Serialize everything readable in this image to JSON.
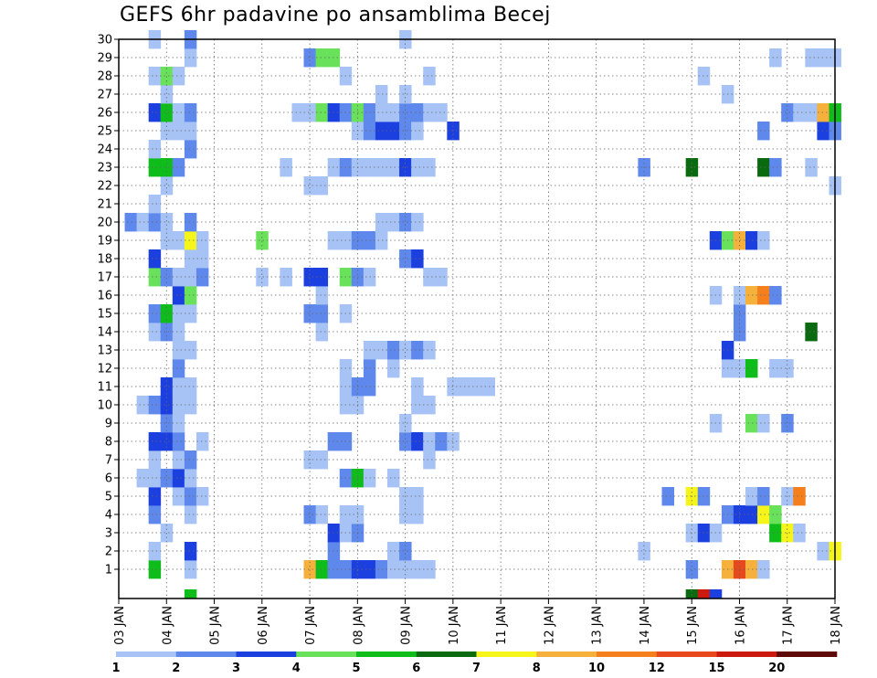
{
  "chart_data": {
    "type": "heatmap",
    "title": "GEFS 6hr padavine po ansamblima Becej",
    "x_tick_labels": [
      "03 JAN",
      "04 JAN",
      "05 JAN",
      "06 JAN",
      "07 JAN",
      "08 JAN",
      "09 JAN",
      "10 JAN",
      "11 JAN",
      "12 JAN",
      "13 JAN",
      "14 JAN",
      "15 JAN",
      "16 JAN",
      "17 JAN",
      "18 JAN"
    ],
    "y_tick_labels": [
      "1",
      "2",
      "3",
      "4",
      "5",
      "6",
      "7",
      "8",
      "9",
      "10",
      "11",
      "12",
      "13",
      "14",
      "15",
      "16",
      "17",
      "18",
      "19",
      "20",
      "21",
      "22",
      "23",
      "24",
      "25",
      "26",
      "27",
      "28",
      "29",
      "30"
    ],
    "xlim_day_of_january": [
      3,
      18
    ],
    "ylim_member": [
      0,
      30
    ],
    "step_hours": 6,
    "grid": true,
    "legend": {
      "placement": "bottom",
      "labels": [
        "1",
        "2",
        "3",
        "4",
        "5",
        "6",
        "7",
        "8",
        "10",
        "12",
        "15",
        "20"
      ],
      "colors": [
        "#a7c3f5",
        "#5f88ec",
        "#1c3fe0",
        "#6ae15a",
        "#0fbd1a",
        "#0a6a10",
        "#f5f51c",
        "#f5b13c",
        "#f57f1c",
        "#e8491c",
        "#cd1a10",
        "#5f0808"
      ]
    },
    "cells": [
      [
        1,
        "03 JAN 18",
        5
      ],
      [
        1,
        "04 JAN 12",
        1
      ],
      [
        1,
        "07 JAN 00",
        9
      ],
      [
        1,
        "07 JAN 06",
        5
      ],
      [
        1,
        "07 JAN 12",
        2
      ],
      [
        1,
        "07 JAN 18",
        2
      ],
      [
        1,
        "08 JAN 00",
        3
      ],
      [
        1,
        "08 JAN 06",
        3
      ],
      [
        1,
        "08 JAN 12",
        2
      ],
      [
        1,
        "08 JAN 18",
        1
      ],
      [
        1,
        "09 JAN 00",
        1
      ],
      [
        1,
        "09 JAN 06",
        1
      ],
      [
        1,
        "09 JAN 12",
        1
      ],
      [
        1,
        "15 JAN 00",
        2
      ],
      [
        1,
        "15 JAN 18",
        9
      ],
      [
        1,
        "16 JAN 00",
        12
      ],
      [
        1,
        "16 JAN 06",
        8
      ],
      [
        1,
        "16 JAN 12",
        1
      ],
      [
        2,
        "03 JAN 18",
        1
      ],
      [
        2,
        "04 JAN 12",
        3
      ],
      [
        2,
        "07 JAN 12",
        2
      ],
      [
        2,
        "08 JAN 18",
        1
      ],
      [
        2,
        "09 JAN 00",
        2
      ],
      [
        2,
        "14 JAN 00",
        1
      ],
      [
        2,
        "17 JAN 18",
        1
      ],
      [
        2,
        "18 JAN 00",
        7
      ],
      [
        3,
        "04 JAN 00",
        1
      ],
      [
        3,
        "07 JAN 12",
        3
      ],
      [
        3,
        "07 JAN 18",
        1
      ],
      [
        3,
        "08 JAN 00",
        2
      ],
      [
        3,
        "15 JAN 00",
        1
      ],
      [
        3,
        "15 JAN 06",
        3
      ],
      [
        3,
        "15 JAN 12",
        1
      ],
      [
        3,
        "16 JAN 18",
        5
      ],
      [
        3,
        "17 JAN 00",
        7
      ],
      [
        3,
        "17 JAN 06",
        1
      ],
      [
        4,
        "03 JAN 18",
        2
      ],
      [
        4,
        "04 JAN 12",
        1
      ],
      [
        4,
        "07 JAN 00",
        2
      ],
      [
        4,
        "07 JAN 06",
        1
      ],
      [
        4,
        "07 JAN 18",
        1
      ],
      [
        4,
        "08 JAN 00",
        1
      ],
      [
        4,
        "09 JAN 00",
        1
      ],
      [
        4,
        "09 JAN 06",
        1
      ],
      [
        4,
        "15 JAN 18",
        2
      ],
      [
        4,
        "16 JAN 00",
        3
      ],
      [
        4,
        "16 JAN 06",
        3
      ],
      [
        4,
        "16 JAN 12",
        7
      ],
      [
        4,
        "16 JAN 18",
        4
      ],
      [
        5,
        "03 JAN 18",
        3
      ],
      [
        5,
        "04 JAN 06",
        1
      ],
      [
        5,
        "04 JAN 12",
        2
      ],
      [
        5,
        "04 JAN 18",
        1
      ],
      [
        5,
        "09 JAN 00",
        1
      ],
      [
        5,
        "09 JAN 06",
        1
      ],
      [
        5,
        "14 JAN 12",
        2
      ],
      [
        5,
        "15 JAN 00",
        7
      ],
      [
        5,
        "15 JAN 06",
        2
      ],
      [
        5,
        "16 JAN 06",
        1
      ],
      [
        5,
        "16 JAN 12",
        2
      ],
      [
        5,
        "17 JAN 00",
        1
      ],
      [
        5,
        "17 JAN 06",
        10
      ],
      [
        6,
        "03 JAN 12",
        1
      ],
      [
        6,
        "03 JAN 18",
        1
      ],
      [
        6,
        "04 JAN 00",
        2
      ],
      [
        6,
        "04 JAN 06",
        3
      ],
      [
        6,
        "04 JAN 12",
        1
      ],
      [
        6,
        "07 JAN 18",
        2
      ],
      [
        6,
        "08 JAN 00",
        5
      ],
      [
        6,
        "08 JAN 06",
        1
      ],
      [
        6,
        "08 JAN 18",
        1
      ],
      [
        7,
        "03 JAN 18",
        1
      ],
      [
        7,
        "04 JAN 06",
        1
      ],
      [
        7,
        "04 JAN 12",
        2
      ],
      [
        7,
        "07 JAN 00",
        1
      ],
      [
        7,
        "07 JAN 06",
        1
      ],
      [
        7,
        "09 JAN 12",
        1
      ],
      [
        8,
        "03 JAN 18",
        3
      ],
      [
        8,
        "04 JAN 00",
        3
      ],
      [
        8,
        "04 JAN 06",
        2
      ],
      [
        8,
        "04 JAN 18",
        1
      ],
      [
        8,
        "07 JAN 12",
        2
      ],
      [
        8,
        "07 JAN 18",
        2
      ],
      [
        8,
        "09 JAN 00",
        2
      ],
      [
        8,
        "09 JAN 06",
        3
      ],
      [
        8,
        "09 JAN 12",
        1
      ],
      [
        8,
        "09 JAN 18",
        2
      ],
      [
        8,
        "10 JAN 00",
        1
      ],
      [
        9,
        "04 JAN 00",
        2
      ],
      [
        9,
        "04 JAN 06",
        1
      ],
      [
        9,
        "09 JAN 00",
        1
      ],
      [
        9,
        "15 JAN 12",
        1
      ],
      [
        9,
        "16 JAN 06",
        4
      ],
      [
        9,
        "16 JAN 12",
        1
      ],
      [
        9,
        "17 JAN 00",
        2
      ],
      [
        10,
        "03 JAN 12",
        1
      ],
      [
        10,
        "03 JAN 18",
        2
      ],
      [
        10,
        "04 JAN 00",
        3
      ],
      [
        10,
        "04 JAN 06",
        1
      ],
      [
        10,
        "04 JAN 12",
        1
      ],
      [
        10,
        "07 JAN 18",
        1
      ],
      [
        10,
        "08 JAN 00",
        1
      ],
      [
        10,
        "09 JAN 06",
        1
      ],
      [
        10,
        "09 JAN 12",
        1
      ],
      [
        11,
        "04 JAN 00",
        3
      ],
      [
        11,
        "04 JAN 06",
        1
      ],
      [
        11,
        "04 JAN 12",
        1
      ],
      [
        11,
        "07 JAN 18",
        1
      ],
      [
        11,
        "08 JAN 00",
        2
      ],
      [
        11,
        "08 JAN 06",
        2
      ],
      [
        11,
        "09 JAN 06",
        1
      ],
      [
        11,
        "10 JAN 00",
        1
      ],
      [
        11,
        "10 JAN 06",
        1
      ],
      [
        11,
        "10 JAN 12",
        1
      ],
      [
        11,
        "10 JAN 18",
        1
      ],
      [
        12,
        "04 JAN 06",
        2
      ],
      [
        12,
        "07 JAN 18",
        1
      ],
      [
        12,
        "08 JAN 06",
        2
      ],
      [
        12,
        "08 JAN 18",
        1
      ],
      [
        12,
        "15 JAN 18",
        1
      ],
      [
        12,
        "16 JAN 00",
        1
      ],
      [
        12,
        "16 JAN 06",
        5
      ],
      [
        12,
        "16 JAN 18",
        1
      ],
      [
        12,
        "17 JAN 00",
        1
      ],
      [
        13,
        "04 JAN 06",
        1
      ],
      [
        13,
        "04 JAN 12",
        1
      ],
      [
        13,
        "08 JAN 06",
        1
      ],
      [
        13,
        "08 JAN 12",
        1
      ],
      [
        13,
        "08 JAN 18",
        2
      ],
      [
        13,
        "09 JAN 00",
        1
      ],
      [
        13,
        "09 JAN 06",
        2
      ],
      [
        13,
        "09 JAN 12",
        1
      ],
      [
        13,
        "15 JAN 18",
        3
      ],
      [
        14,
        "03 JAN 18",
        1
      ],
      [
        14,
        "04 JAN 00",
        2
      ],
      [
        14,
        "04 JAN 06",
        1
      ],
      [
        14,
        "07 JAN 06",
        1
      ],
      [
        14,
        "16 JAN 00",
        2
      ],
      [
        14,
        "17 JAN 12",
        6
      ],
      [
        15,
        "03 JAN 18",
        2
      ],
      [
        15,
        "04 JAN 00",
        5
      ],
      [
        15,
        "04 JAN 06",
        1
      ],
      [
        15,
        "04 JAN 12",
        1
      ],
      [
        15,
        "07 JAN 00",
        2
      ],
      [
        15,
        "07 JAN 06",
        2
      ],
      [
        15,
        "07 JAN 18",
        1
      ],
      [
        15,
        "16 JAN 00",
        2
      ],
      [
        16,
        "04 JAN 06",
        3
      ],
      [
        16,
        "04 JAN 12",
        4
      ],
      [
        16,
        "07 JAN 06",
        1
      ],
      [
        16,
        "15 JAN 12",
        1
      ],
      [
        16,
        "16 JAN 00",
        1
      ],
      [
        16,
        "16 JAN 06",
        9
      ],
      [
        16,
        "16 JAN 12",
        10
      ],
      [
        16,
        "16 JAN 18",
        2
      ],
      [
        17,
        "03 JAN 18",
        4
      ],
      [
        17,
        "04 JAN 00",
        2
      ],
      [
        17,
        "04 JAN 06",
        1
      ],
      [
        17,
        "04 JAN 12",
        1
      ],
      [
        17,
        "04 JAN 18",
        2
      ],
      [
        17,
        "06 JAN 00",
        1
      ],
      [
        17,
        "06 JAN 12",
        1
      ],
      [
        17,
        "07 JAN 00",
        3
      ],
      [
        17,
        "07 JAN 06",
        3
      ],
      [
        17,
        "07 JAN 18",
        4
      ],
      [
        17,
        "08 JAN 00",
        2
      ],
      [
        17,
        "08 JAN 06",
        1
      ],
      [
        17,
        "09 JAN 12",
        1
      ],
      [
        17,
        "09 JAN 18",
        1
      ],
      [
        18,
        "03 JAN 18",
        3
      ],
      [
        18,
        "04 JAN 12",
        1
      ],
      [
        18,
        "04 JAN 18",
        1
      ],
      [
        18,
        "09 JAN 00",
        2
      ],
      [
        18,
        "09 JAN 06",
        3
      ],
      [
        19,
        "04 JAN 00",
        1
      ],
      [
        19,
        "04 JAN 06",
        1
      ],
      [
        19,
        "04 JAN 12",
        7
      ],
      [
        19,
        "04 JAN 18",
        1
      ],
      [
        19,
        "06 JAN 00",
        4
      ],
      [
        19,
        "07 JAN 12",
        1
      ],
      [
        19,
        "07 JAN 18",
        1
      ],
      [
        19,
        "08 JAN 00",
        2
      ],
      [
        19,
        "08 JAN 06",
        2
      ],
      [
        19,
        "08 JAN 12",
        1
      ],
      [
        19,
        "15 JAN 12",
        3
      ],
      [
        19,
        "15 JAN 18",
        4
      ],
      [
        19,
        "16 JAN 00",
        9
      ],
      [
        19,
        "16 JAN 06",
        3
      ],
      [
        19,
        "16 JAN 12",
        1
      ],
      [
        20,
        "03 JAN 06",
        2
      ],
      [
        20,
        "03 JAN 12",
        1
      ],
      [
        20,
        "03 JAN 18",
        2
      ],
      [
        20,
        "04 JAN 00",
        1
      ],
      [
        20,
        "04 JAN 12",
        2
      ],
      [
        20,
        "08 JAN 12",
        1
      ],
      [
        20,
        "08 JAN 18",
        1
      ],
      [
        20,
        "09 JAN 00",
        2
      ],
      [
        20,
        "09 JAN 06",
        1
      ],
      [
        21,
        "03 JAN 18",
        1
      ],
      [
        22,
        "04 JAN 00",
        1
      ],
      [
        22,
        "07 JAN 00",
        1
      ],
      [
        22,
        "07 JAN 06",
        1
      ],
      [
        22,
        "18 JAN 00",
        1
      ],
      [
        23,
        "03 JAN 18",
        5
      ],
      [
        23,
        "04 JAN 00",
        5
      ],
      [
        23,
        "04 JAN 06",
        2
      ],
      [
        23,
        "06 JAN 12",
        1
      ],
      [
        23,
        "07 JAN 12",
        1
      ],
      [
        23,
        "07 JAN 18",
        2
      ],
      [
        23,
        "08 JAN 00",
        1
      ],
      [
        23,
        "08 JAN 06",
        1
      ],
      [
        23,
        "08 JAN 12",
        1
      ],
      [
        23,
        "08 JAN 18",
        1
      ],
      [
        23,
        "09 JAN 00",
        3
      ],
      [
        23,
        "09 JAN 06",
        1
      ],
      [
        23,
        "09 JAN 12",
        1
      ],
      [
        23,
        "14 JAN 00",
        2
      ],
      [
        23,
        "15 JAN 00",
        6
      ],
      [
        23,
        "16 JAN 12",
        6
      ],
      [
        23,
        "16 JAN 18",
        2
      ],
      [
        23,
        "17 JAN 12",
        1
      ],
      [
        24,
        "03 JAN 18",
        1
      ],
      [
        24,
        "04 JAN 12",
        2
      ],
      [
        25,
        "04 JAN 00",
        1
      ],
      [
        25,
        "04 JAN 06",
        1
      ],
      [
        25,
        "04 JAN 12",
        1
      ],
      [
        25,
        "08 JAN 00",
        1
      ],
      [
        25,
        "08 JAN 06",
        2
      ],
      [
        25,
        "08 JAN 12",
        3
      ],
      [
        25,
        "08 JAN 18",
        3
      ],
      [
        25,
        "09 JAN 00",
        2
      ],
      [
        25,
        "09 JAN 06",
        1
      ],
      [
        25,
        "10 JAN 00",
        3
      ],
      [
        25,
        "16 JAN 12",
        2
      ],
      [
        25,
        "17 JAN 18",
        3
      ],
      [
        25,
        "18 JAN 00",
        2
      ],
      [
        26,
        "03 JAN 18",
        3
      ],
      [
        26,
        "04 JAN 00",
        5
      ],
      [
        26,
        "04 JAN 06",
        1
      ],
      [
        26,
        "04 JAN 12",
        2
      ],
      [
        26,
        "06 JAN 18",
        1
      ],
      [
        26,
        "07 JAN 00",
        1
      ],
      [
        26,
        "07 JAN 06",
        4
      ],
      [
        26,
        "07 JAN 12",
        3
      ],
      [
        26,
        "07 JAN 18",
        2
      ],
      [
        26,
        "08 JAN 00",
        4
      ],
      [
        26,
        "08 JAN 06",
        2
      ],
      [
        26,
        "08 JAN 12",
        1
      ],
      [
        26,
        "08 JAN 18",
        1
      ],
      [
        26,
        "09 JAN 00",
        2
      ],
      [
        26,
        "09 JAN 06",
        2
      ],
      [
        26,
        "09 JAN 12",
        1
      ],
      [
        26,
        "09 JAN 18",
        1
      ],
      [
        26,
        "17 JAN 00",
        2
      ],
      [
        26,
        "17 JAN 06",
        1
      ],
      [
        26,
        "17 JAN 12",
        1
      ],
      [
        26,
        "17 JAN 18",
        9
      ],
      [
        26,
        "18 JAN 00",
        5
      ],
      [
        27,
        "04 JAN 00",
        1
      ],
      [
        27,
        "08 JAN 12",
        1
      ],
      [
        27,
        "09 JAN 00",
        1
      ],
      [
        27,
        "15 JAN 18",
        1
      ],
      [
        28,
        "03 JAN 18",
        1
      ],
      [
        28,
        "04 JAN 00",
        4
      ],
      [
        28,
        "04 JAN 06",
        1
      ],
      [
        28,
        "07 JAN 18",
        1
      ],
      [
        28,
        "09 JAN 12",
        1
      ],
      [
        28,
        "15 JAN 06",
        1
      ],
      [
        29,
        "04 JAN 12",
        1
      ],
      [
        29,
        "07 JAN 00",
        2
      ],
      [
        29,
        "07 JAN 06",
        4
      ],
      [
        29,
        "07 JAN 12",
        4
      ],
      [
        29,
        "16 JAN 18",
        1
      ],
      [
        29,
        "17 JAN 12",
        1
      ],
      [
        29,
        "17 JAN 18",
        1
      ],
      [
        29,
        "18 JAN 00",
        1
      ],
      [
        30,
        "03 JAN 18",
        1
      ],
      [
        30,
        "04 JAN 12",
        2
      ],
      [
        30,
        "09 JAN 00",
        1
      ]
    ],
    "below_axis_cells": [
      [
        "04 JAN 12",
        "#0fbd1a"
      ],
      [
        "15 JAN 00",
        "#0a6a10"
      ],
      [
        "15 JAN 06",
        "#cd1a10"
      ],
      [
        "15 JAN 12",
        "#1c3fe0"
      ]
    ]
  }
}
